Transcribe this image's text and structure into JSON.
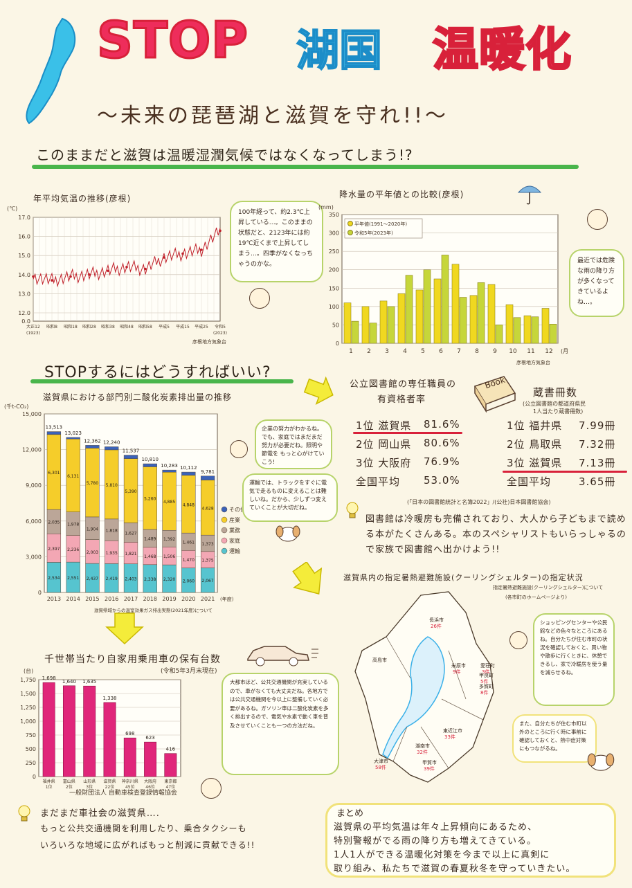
{
  "header": {
    "title_stop": "STOP",
    "title_lake": "湖国",
    "title_warm": "温暖化",
    "subtitle": "〜未来の琵琶湖と滋賀を守れ!!〜",
    "lead": "このままだと滋賀は温暖湿潤気候ではなくなってしまう!?"
  },
  "temp_chart": {
    "title": "年平均気温の推移(彦根)",
    "unit": "(℃)",
    "yticks": [
      "17.0",
      "16.0",
      "15.0",
      "14.0",
      "13.0",
      "12.0",
      "0.0"
    ],
    "xticks": [
      "大正12",
      "昭和8",
      "昭和18",
      "昭和28",
      "昭和38",
      "昭和48",
      "昭和58",
      "平成5",
      "平成15",
      "平成25",
      "令和5"
    ],
    "x_first_year": "(1923)",
    "x_last_year": "(2023)",
    "x_unit": "(年)",
    "source": "彦根地方気象台",
    "bubble": "100年経って、約2.3℃上昇している…。このままの状態だと、2123年には約19℃近くまで上昇してしまう…。四季がなくなっちゃうのかな。"
  },
  "rain_chart": {
    "title": "降水量の平年値との比較(彦根)",
    "unit": "(mm)",
    "yticks": [
      "350",
      "300",
      "250",
      "200",
      "150",
      "100",
      "50",
      "0"
    ],
    "months": [
      "1",
      "2",
      "3",
      "4",
      "5",
      "6",
      "7",
      "8",
      "9",
      "10",
      "11",
      "12"
    ],
    "month_unit": "(月)",
    "legend_normal": "平年値(1991〜2020年)",
    "legend_2023": "令和5年(2023年)",
    "source": "彦根地方気象台",
    "bubble": "最近では危険な雨の降り方が多くなってきているよね…。",
    "color_normal": "#f0d820",
    "color_2023": "#c6d63a"
  },
  "stop_head": "STOPするにはどうすればいい?",
  "co2_chart": {
    "title": "滋賀県における部門別二酸化炭素排出量の推移",
    "unit": "(千t-CO₂)",
    "yticks": [
      "15,000",
      "12,000",
      "9,000",
      "6,000",
      "3,000",
      "0"
    ],
    "years": [
      "2013",
      "2014",
      "2015",
      "2016",
      "2017",
      "2018",
      "2019",
      "2020",
      "2021"
    ],
    "year_unit": "(年度)",
    "totals": [
      "13,513",
      "13,023",
      "12,362",
      "12,240",
      "11,537",
      "10,810",
      "10,283",
      "10,112",
      "9,781"
    ],
    "legend": [
      "その他",
      "産業",
      "業務",
      "家庭",
      "運輸"
    ],
    "colors": [
      "#3b62b8",
      "#f5cd2a",
      "#bba698",
      "#f3a7b4",
      "#56c4cf"
    ],
    "source": "滋賀県域からの温室効果ガス排出実態(2021年度)について",
    "bubble1": "企業の努力がわかるね。でも、家庭ではまだまだ努力が必要だね。照明や節電を もっと心がけていこう!",
    "bubble2": "運輸では、トラックをすぐに電気で走るものに変えることは難しいね。だから、少しずつ変えていくことが大切だね。"
  },
  "library": {
    "head1": "公立図書館の専任職員の",
    "head2": "有資格者率",
    "book_label": "Book",
    "ranks": [
      {
        "label": "1位 滋賀県",
        "value": "81.6%"
      },
      {
        "label": "2位 岡山県",
        "value": "80.6%"
      },
      {
        "label": "3位 大阪府",
        "value": "76.9%"
      },
      {
        "label": "全国平均",
        "value": "53.0%"
      }
    ],
    "book_head": "蔵書冊数",
    "book_sub1": "(公立図書館の都道府県民",
    "book_sub2": "1人当たり蔵書冊数)",
    "book_ranks": [
      {
        "label": "1位 福井県",
        "value": "7.99冊"
      },
      {
        "label": "2位 鳥取県",
        "value": "7.32冊"
      },
      {
        "label": "3位 滋賀県",
        "value": "7.13冊"
      },
      {
        "label": "全国平均",
        "value": "3.65冊"
      }
    ],
    "source": "(「日本の図書館統計と名簿2022」/(公社)日本図書館協会)",
    "text": "図書館は冷暖房も完備されており、大人から子どもまで読める本がたくさんある。本のスペシャリストもいらっしゃるので家族で図書館へ出かけよう!!"
  },
  "shelter": {
    "head": "滋賀県内の指定暑熱避難施設(クーリングシェルター)の指定状況",
    "sub1": "指定暑熱避難施設(クーリングシェルター)について",
    "sub2": "(各市町のホームページより)",
    "labels": [
      {
        "name": "長浜市",
        "count": "26件"
      },
      {
        "name": "米原市",
        "count": "9件"
      },
      {
        "name": "高島市",
        "count": ""
      },
      {
        "name": "愛荘町",
        "count": "3件"
      },
      {
        "name": "甲良町",
        "count": "5件"
      },
      {
        "name": "多賀町",
        "count": "8件"
      },
      {
        "name": "東近江市",
        "count": "33件"
      },
      {
        "name": "湖南市",
        "count": "32件"
      },
      {
        "name": "甲賀市",
        "count": "39件"
      },
      {
        "name": "大津市",
        "count": "58件"
      }
    ],
    "bubble1": "ショッピングセンターや公民館などの色々なところにあるね。自分たちが住む市町の状況を確認しておくと、買い物や散歩に行くときに、休憩できるし、家で冷暖房を使う量を減らせるね。",
    "bubble2": "また、自分たちが住む市町以外のところに行く時に事前に確認しておくと、熱中症対策にもつながるね。"
  },
  "car_chart": {
    "title": "千世帯当たり自家用乗用車の保有台数",
    "sub": "(令和5年3月末現在)",
    "unit": "(台)",
    "yticks": [
      "1,750",
      "1,500",
      "1,250",
      "1,000",
      "750",
      "500",
      "250",
      "0"
    ],
    "bars": [
      {
        "pref": "福井県",
        "rank": "1位",
        "value": 1698,
        "label": "1,698"
      },
      {
        "pref": "富山県",
        "rank": "2位",
        "value": 1640,
        "label": "1,640"
      },
      {
        "pref": "山形県",
        "rank": "3位",
        "value": 1635,
        "label": "1,635"
      },
      {
        "pref": "滋賀県",
        "rank": "22位",
        "value": 1338,
        "label": "1,338"
      },
      {
        "pref": "神奈川県",
        "rank": "45位",
        "value": 698,
        "label": "698"
      },
      {
        "pref": "大阪府",
        "rank": "46位",
        "value": 623,
        "label": "623"
      },
      {
        "pref": "東京都",
        "rank": "47位",
        "value": 416,
        "label": "416"
      }
    ],
    "bar_color": "#e0267a",
    "source": "一般財団法人 自動車検査登録情報協会",
    "bubble": "大都市ほど、公共交通機関が充実しているので、車がなくても大丈夫だね。各地方では公共交通機関を今以上に整備していく必要があるね。ガソリン車は二酸化炭素を多く排出するので、電気や水素で動く車を普及させていくことも一つの方法だね。",
    "note_line1": "まだまだ車社会の滋賀県….",
    "note_line2": "もっと公共交通機関を利用したり、乗合タクシーも",
    "note_line3": "いろいろな地域に広がればもっと削減に貢献できる!!"
  },
  "summary": {
    "head": "まとめ",
    "line1": "滋賀県の平均気温は年々上昇傾向にあるため、",
    "line2": "特別警報がでる雨の降り方も増えてきている。",
    "line3": "1人1人ができる温暖化対策を今まで以上に真剣に",
    "line4": "取り組み、私たちで滋賀の春夏秋冬を守っていきたい。"
  },
  "chart_data": [
    {
      "type": "line",
      "title": "年平均気温の推移(彦根)",
      "ylabel": "(℃)",
      "ylim": [
        12,
        17
      ],
      "x": [
        1923,
        1933,
        1943,
        1953,
        1963,
        1973,
        1983,
        1993,
        2003,
        2013,
        2023
      ],
      "values": [
        13.9,
        13.7,
        13.9,
        14.0,
        14.2,
        14.4,
        14.3,
        14.9,
        15.1,
        15.3,
        16.3
      ]
    },
    {
      "type": "bar",
      "title": "降水量の平年値との比較(彦根)",
      "ylabel": "(mm)",
      "ylim": [
        0,
        350
      ],
      "categories": [
        "1",
        "2",
        "3",
        "4",
        "5",
        "6",
        "7",
        "8",
        "9",
        "10",
        "11",
        "12"
      ],
      "series": [
        {
          "name": "平年値(1991〜2020年)",
          "values": [
            110,
            100,
            115,
            135,
            145,
            175,
            215,
            130,
            160,
            105,
            75,
            95
          ]
        },
        {
          "name": "令和5年(2023年)",
          "values": [
            60,
            55,
            100,
            185,
            200,
            240,
            125,
            165,
            50,
            70,
            72,
            52
          ]
        }
      ]
    },
    {
      "type": "bar",
      "title": "滋賀県における部門別二酸化炭素排出量の推移",
      "ylabel": "(千t-CO₂)",
      "ylim": [
        0,
        15000
      ],
      "categories": [
        "2013",
        "2014",
        "2015",
        "2016",
        "2017",
        "2018",
        "2019",
        "2020",
        "2021"
      ],
      "series": [
        {
          "name": "運輸",
          "values": [
            2534,
            2551,
            2437,
            2419,
            2403,
            2338,
            2320,
            2060,
            2067
          ]
        },
        {
          "name": "家庭",
          "values": [
            2397,
            2236,
            2003,
            1935,
            1821,
            1468,
            1506,
            1470,
            1375
          ]
        },
        {
          "name": "業務",
          "values": [
            2035,
            1978,
            1904,
            1818,
            1627,
            1489,
            1392,
            1461,
            1373
          ]
        },
        {
          "name": "産業",
          "values": [
            6301,
            6131,
            5780,
            5810,
            5390,
            5260,
            4885,
            4848,
            4628
          ]
        },
        {
          "name": "その他",
          "values": [
            246,
            127,
            238,
            258,
            296,
            255,
            180,
            273,
            338
          ]
        }
      ]
    },
    {
      "type": "bar",
      "title": "千世帯当たり自家用乗用車の保有台数",
      "ylabel": "(台)",
      "ylim": [
        0,
        1750
      ],
      "categories": [
        "福井県",
        "富山県",
        "山形県",
        "滋賀県",
        "神奈川県",
        "大阪府",
        "東京都"
      ],
      "values": [
        1698,
        1640,
        1635,
        1338,
        698,
        623,
        416
      ]
    }
  ]
}
